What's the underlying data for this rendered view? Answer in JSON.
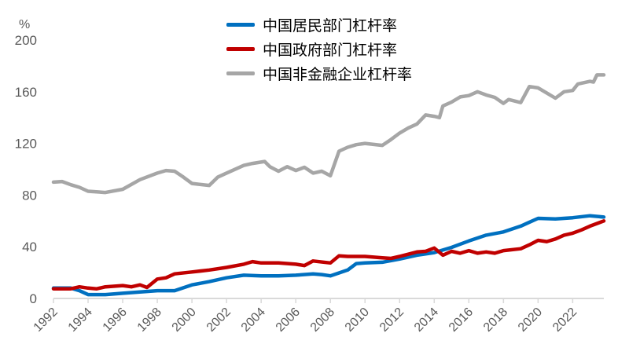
{
  "chart_data": {
    "type": "line",
    "title": "",
    "xlabel": "",
    "ylabel": "%",
    "ylim": [
      0,
      200
    ],
    "yticks": [
      0,
      40,
      80,
      120,
      160,
      200
    ],
    "xlim": [
      1992,
      2023.8
    ],
    "xticks": [
      "1992",
      "1994",
      "1996",
      "1998",
      "2000",
      "2002",
      "2004",
      "2006",
      "2008",
      "2010",
      "2012",
      "2014",
      "2016",
      "2018",
      "2020",
      "2022"
    ],
    "grid": false,
    "legend_position": "top-center",
    "series": [
      {
        "name": "中国居民部门杠杆率",
        "color": "#0070c0",
        "points": [
          [
            1992,
            8
          ],
          [
            1993,
            8
          ],
          [
            1993.5,
            6
          ],
          [
            1994,
            3
          ],
          [
            1995,
            3
          ],
          [
            1996,
            4
          ],
          [
            1997,
            5
          ],
          [
            1998,
            6
          ],
          [
            1999,
            6
          ],
          [
            2000,
            10.5
          ],
          [
            2001,
            13
          ],
          [
            2002,
            16
          ],
          [
            2003,
            18
          ],
          [
            2004,
            17.5
          ],
          [
            2005,
            17.5
          ],
          [
            2006,
            18
          ],
          [
            2007,
            19
          ],
          [
            2007.5,
            18.5
          ],
          [
            2008,
            17.5
          ],
          [
            2009,
            22
          ],
          [
            2009.5,
            27
          ],
          [
            2010,
            27.5
          ],
          [
            2011,
            28
          ],
          [
            2012,
            30.5
          ],
          [
            2013,
            33.5
          ],
          [
            2014,
            35.5
          ],
          [
            2015,
            39.5
          ],
          [
            2016,
            44.5
          ],
          [
            2017,
            49
          ],
          [
            2018,
            51.5
          ],
          [
            2019,
            56
          ],
          [
            2019.5,
            59
          ],
          [
            2020,
            62
          ],
          [
            2021,
            61.5
          ],
          [
            2022,
            62.5
          ],
          [
            2023,
            64
          ],
          [
            2023.8,
            63
          ]
        ]
      },
      {
        "name": "中国政府部门杠杆率",
        "color": "#c00000",
        "points": [
          [
            1992,
            7.5
          ],
          [
            1993,
            7.5
          ],
          [
            1993.5,
            9
          ],
          [
            1994,
            8
          ],
          [
            1994.5,
            7.5
          ],
          [
            1995,
            9
          ],
          [
            1996,
            10
          ],
          [
            1996.5,
            9
          ],
          [
            1997,
            10.5
          ],
          [
            1997.4,
            8.5
          ],
          [
            1998,
            15
          ],
          [
            1998.5,
            16
          ],
          [
            1999,
            19
          ],
          [
            2000,
            20.5
          ],
          [
            2001,
            22
          ],
          [
            2002,
            24
          ],
          [
            2003,
            26.5
          ],
          [
            2003.5,
            28.5
          ],
          [
            2004,
            27.5
          ],
          [
            2005,
            27.5
          ],
          [
            2006,
            26.5
          ],
          [
            2006.5,
            25.5
          ],
          [
            2007,
            29
          ],
          [
            2008,
            27.5
          ],
          [
            2008.5,
            33
          ],
          [
            2009,
            32.5
          ],
          [
            2010,
            32.5
          ],
          [
            2011,
            31.5
          ],
          [
            2011.5,
            31
          ],
          [
            2012,
            32.5
          ],
          [
            2013,
            36
          ],
          [
            2013.5,
            36.5
          ],
          [
            2014,
            39
          ],
          [
            2014.5,
            33.5
          ],
          [
            2015,
            36.5
          ],
          [
            2015.5,
            35
          ],
          [
            2016,
            37
          ],
          [
            2016.5,
            35
          ],
          [
            2017,
            36
          ],
          [
            2017.5,
            35
          ],
          [
            2018,
            37
          ],
          [
            2019,
            38.5
          ],
          [
            2019.5,
            41.5
          ],
          [
            2020,
            45
          ],
          [
            2020.5,
            44
          ],
          [
            2021,
            46
          ],
          [
            2021.5,
            49
          ],
          [
            2022,
            50.5
          ],
          [
            2022.5,
            53
          ],
          [
            2023,
            56
          ],
          [
            2023.8,
            60
          ]
        ]
      },
      {
        "name": "中国非金融企业杠杆率",
        "color": "#a6a6a6",
        "points": [
          [
            1992,
            90
          ],
          [
            1992.5,
            90.5
          ],
          [
            1993,
            88
          ],
          [
            1993.5,
            86
          ],
          [
            1994,
            83
          ],
          [
            1995,
            82
          ],
          [
            1996,
            84.5
          ],
          [
            1997,
            92
          ],
          [
            1998,
            97
          ],
          [
            1998.5,
            99
          ],
          [
            1999,
            98.5
          ],
          [
            1999.5,
            94
          ],
          [
            2000,
            89
          ],
          [
            2001,
            87.5
          ],
          [
            2001.5,
            94
          ],
          [
            2002,
            97
          ],
          [
            2003,
            103
          ],
          [
            2003.5,
            104.5
          ],
          [
            2004.2,
            106
          ],
          [
            2004.5,
            102
          ],
          [
            2005,
            98.5
          ],
          [
            2005.5,
            102
          ],
          [
            2006,
            99
          ],
          [
            2006.5,
            101.5
          ],
          [
            2007,
            97
          ],
          [
            2007.5,
            98.5
          ],
          [
            2008,
            95
          ],
          [
            2008.5,
            114
          ],
          [
            2009,
            117
          ],
          [
            2009.5,
            119
          ],
          [
            2010,
            120
          ],
          [
            2011,
            118.5
          ],
          [
            2011.5,
            123
          ],
          [
            2012,
            128
          ],
          [
            2012.5,
            132
          ],
          [
            2013,
            135
          ],
          [
            2013.5,
            142
          ],
          [
            2014,
            141
          ],
          [
            2014.3,
            140
          ],
          [
            2014.5,
            149
          ],
          [
            2015,
            152
          ],
          [
            2015.5,
            156
          ],
          [
            2016,
            157
          ],
          [
            2016.5,
            160
          ],
          [
            2017,
            157.5
          ],
          [
            2017.5,
            155.6
          ],
          [
            2018,
            151
          ],
          [
            2018.3,
            154
          ],
          [
            2019,
            151.6
          ],
          [
            2019.5,
            164
          ],
          [
            2020,
            163
          ],
          [
            2020.5,
            159
          ],
          [
            2021,
            155
          ],
          [
            2021.5,
            160
          ],
          [
            2022,
            161
          ],
          [
            2022.3,
            166
          ],
          [
            2023,
            168
          ],
          [
            2023.2,
            167.5
          ],
          [
            2023.4,
            173
          ],
          [
            2023.8,
            173
          ]
        ]
      }
    ]
  }
}
